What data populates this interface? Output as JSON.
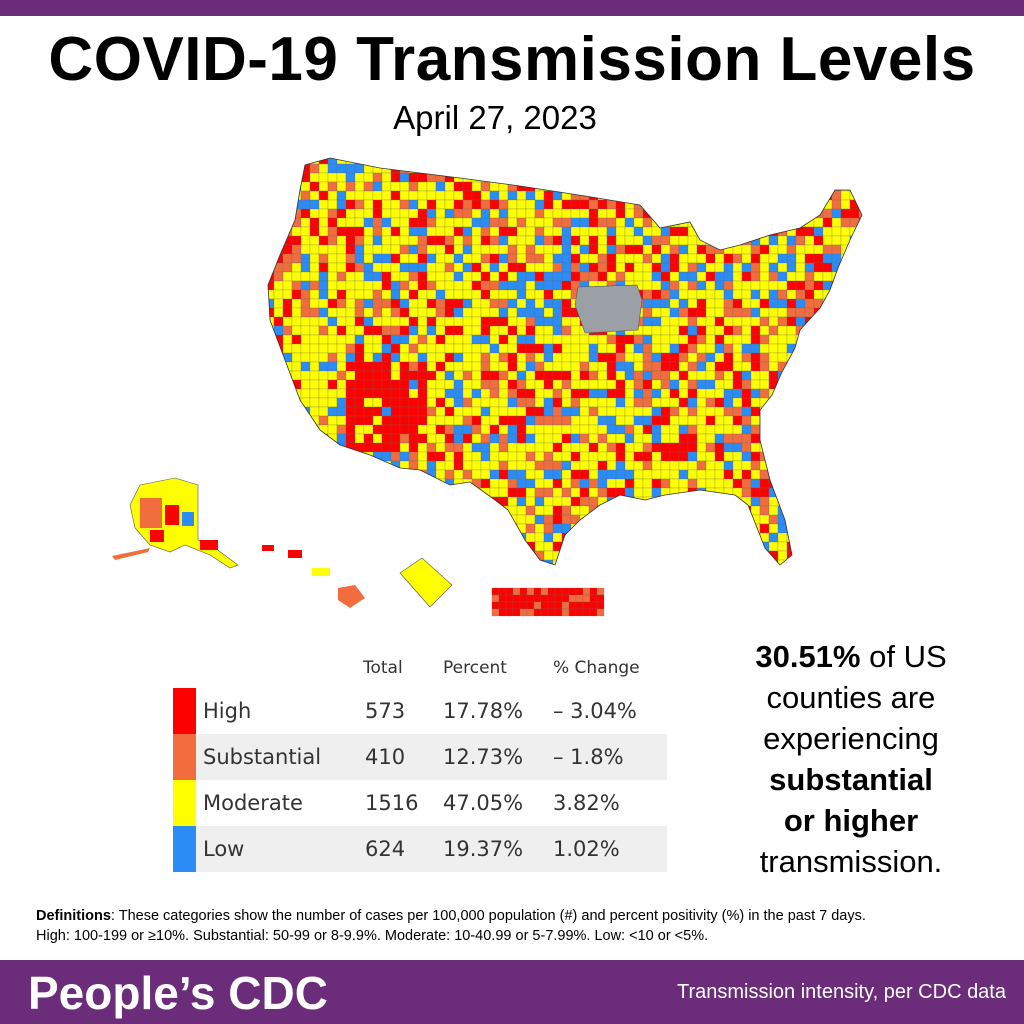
{
  "header": {
    "title": "COVID-19 Transmission Levels",
    "date": "April 27, 2023"
  },
  "colors": {
    "brand_purple": "#6b2c7a",
    "high": "#ff0000",
    "substantial": "#f26d3d",
    "moderate": "#ffff00",
    "low": "#2b8cf5",
    "no_data": "#9aa0a6"
  },
  "map": {
    "description_icon": "us-county-choropleth"
  },
  "legend": {
    "headers": {
      "total": "Total",
      "percent": "Percent",
      "change": "% Change"
    },
    "rows": [
      {
        "level": "High",
        "total": "573",
        "percent": "17.78%",
        "change": "– 3.04%",
        "color": "#ff0000"
      },
      {
        "level": "Substantial",
        "total": "410",
        "percent": "12.73%",
        "change": "– 1.8%",
        "color": "#f26d3d"
      },
      {
        "level": "Moderate",
        "total": "1516",
        "percent": "47.05%",
        "change": "3.82%",
        "color": "#ffff00"
      },
      {
        "level": "Low",
        "total": "624",
        "percent": "19.37%",
        "change": "1.02%",
        "color": "#2b8cf5"
      }
    ]
  },
  "stat": {
    "percent": "30.51%",
    "line1_rest": " of US",
    "line2": "counties are",
    "line3": "experiencing",
    "line4": "substantial",
    "line5": "or higher",
    "line6": "transmission."
  },
  "definitions": {
    "label": "Definitions",
    "line1": ": These categories show the number of cases per 100,000 population (#) and percent positivity (%) in the past 7 days.",
    "line2": "High: 100-199 or ≥10%. Substantial: 50-99 or 8-9.9%. Moderate: 10-40.99 or 5-7.99%. Low: <10 or <5%."
  },
  "footer": {
    "brand": "People’s CDC",
    "tagline": "Transmission intensity, per CDC data"
  }
}
